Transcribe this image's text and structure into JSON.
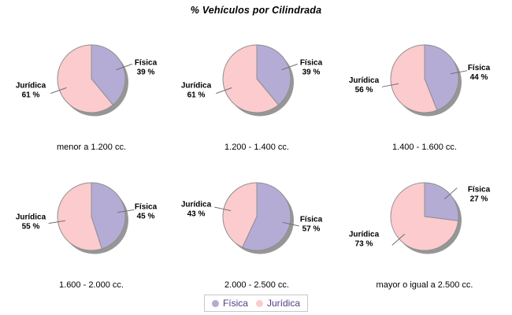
{
  "title": "% Vehículos por Cilindrada",
  "colors": {
    "background": "#ffffff",
    "fisica": "#b4acd5",
    "juridica": "#fccbcd",
    "shadow": "#969696",
    "slice_outline": "#8f8f8f",
    "leader_line": "#707070",
    "slice_label_text": "#000000",
    "category_label_text": "#000000",
    "legend_text": "#513c82",
    "legend_border": "#c8c8c8"
  },
  "legend": {
    "items": [
      {
        "label": "Física",
        "color": "#b4acd5"
      },
      {
        "label": "Jurídica",
        "color": "#fccbcd"
      }
    ]
  },
  "chart_data": {
    "type": "pie",
    "title": "% Vehículos por Cilindrada",
    "value_suffix": " %",
    "legend_position": "bottom",
    "series_labels": [
      "Física",
      "Jurídica"
    ],
    "charts": [
      {
        "category": "menor a 1.200 cc.",
        "slices": [
          {
            "name": "Física",
            "value": 39
          },
          {
            "name": "Jurídica",
            "value": 61
          }
        ]
      },
      {
        "category": "1.200 - 1.400 cc.",
        "slices": [
          {
            "name": "Física",
            "value": 39
          },
          {
            "name": "Jurídica",
            "value": 61
          }
        ]
      },
      {
        "category": "1.400 - 1.600 cc.",
        "slices": [
          {
            "name": "Física",
            "value": 44
          },
          {
            "name": "Jurídica",
            "value": 56
          }
        ]
      },
      {
        "category": "1.600 - 2.000 cc.",
        "slices": [
          {
            "name": "Física",
            "value": 45
          },
          {
            "name": "Jurídica",
            "value": 55
          }
        ]
      },
      {
        "category": "2.000 - 2.500 cc.",
        "slices": [
          {
            "name": "Física",
            "value": 57
          },
          {
            "name": "Jurídica",
            "value": 43
          }
        ]
      },
      {
        "category": "mayor o igual a 2.500 cc.",
        "slices": [
          {
            "name": "Física",
            "value": 27
          },
          {
            "name": "Jurídica",
            "value": 73
          }
        ]
      }
    ]
  }
}
